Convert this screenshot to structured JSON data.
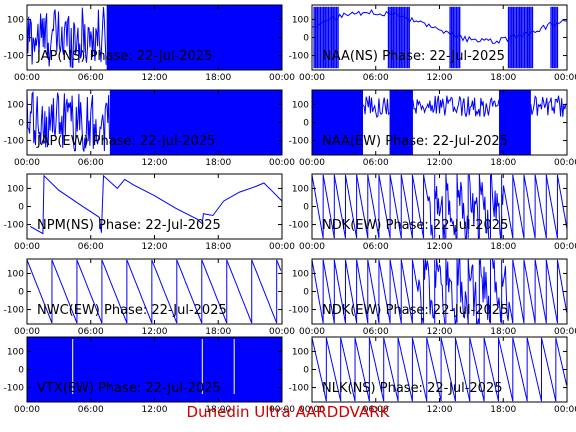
{
  "footer": {
    "text": "Dunedin Ultra AARDDVARK"
  },
  "colors": {
    "trace": "#0000ff",
    "axis": "#000000",
    "footer": "#cc0000"
  },
  "chart_data": [
    {
      "type": "line",
      "title": "JAP(NS) Phase: 22-Jul-2025",
      "xticks": [
        "00:00",
        "06:00",
        "12:00",
        "18:00",
        "00:00"
      ],
      "yticks": [
        100,
        0,
        -100
      ],
      "xlim": [
        0,
        24
      ],
      "ylim": [
        -180,
        180
      ],
      "pattern": "noise_then_saturated",
      "segments": [
        [
          0,
          7.5
        ]
      ],
      "saturated_after": 7.5
    },
    {
      "type": "line",
      "title": "NAA(NS) Phase: 22-Jul-2025",
      "xticks": [
        "00:00",
        "06:00",
        "12:00",
        "18:00",
        "00:00"
      ],
      "yticks": [
        100,
        0,
        -100
      ],
      "xlim": [
        0,
        24
      ],
      "ylim": [
        -180,
        180
      ],
      "pattern": "ramp_with_bursts",
      "segments": [
        [
          0,
          24
        ]
      ],
      "bursts": [
        [
          0.2,
          2.5
        ],
        [
          7.2,
          9.2
        ],
        [
          13.0,
          14.0
        ],
        [
          18.5,
          20.8
        ],
        [
          22.5,
          23.2
        ]
      ]
    },
    {
      "type": "line",
      "title": "JAP(EW) Phase: 22-Jul-2025",
      "xticks": [
        "00:00",
        "06:00",
        "12:00",
        "18:00",
        "00:00"
      ],
      "yticks": [
        100,
        0,
        -100
      ],
      "xlim": [
        0,
        24
      ],
      "ylim": [
        -180,
        180
      ],
      "pattern": "noise_then_saturated",
      "segments": [
        [
          0,
          7.8
        ]
      ],
      "saturated_after": 7.8
    },
    {
      "type": "line",
      "title": "NAA(EW) Phase: 22-Jul-2025",
      "xticks": [
        "00:00",
        "06:00",
        "12:00",
        "18:00",
        "00:00"
      ],
      "yticks": [
        100,
        0,
        -100
      ],
      "xlim": [
        0,
        24
      ],
      "ylim": [
        -180,
        180
      ],
      "pattern": "saturated_with_gap",
      "saturated_ranges": [
        [
          0,
          4.8
        ],
        [
          7.3,
          9.5
        ],
        [
          17.6,
          20.6
        ]
      ],
      "segments": [
        [
          4.8,
          7.3
        ],
        [
          9.5,
          17.6
        ],
        [
          20.6,
          24
        ]
      ]
    },
    {
      "type": "line",
      "title": "NPM(NS) Phase: 22-Jul-2025",
      "xticks": [
        "00:00",
        "06:00",
        "12:00",
        "18:00",
        "00:00"
      ],
      "yticks": [
        100,
        0,
        -100
      ],
      "xlim": [
        0,
        24
      ],
      "ylim": [
        -180,
        180
      ],
      "pattern": "npm_curve",
      "points": [
        [
          0.3,
          -110
        ],
        [
          1.5,
          -150
        ],
        [
          1.6,
          170
        ],
        [
          3,
          90
        ],
        [
          5,
          10
        ],
        [
          6.8,
          -60
        ],
        [
          7.0,
          -145
        ],
        [
          7.2,
          170
        ],
        [
          8.5,
          100
        ],
        [
          9.2,
          150
        ],
        [
          10,
          120
        ],
        [
          12,
          60
        ],
        [
          14,
          -10
        ],
        [
          16,
          -70
        ],
        [
          16.5,
          -95
        ],
        [
          16.6,
          -40
        ],
        [
          17.5,
          -50
        ],
        [
          18.5,
          30
        ],
        [
          20,
          80
        ],
        [
          21.5,
          110
        ],
        [
          22.3,
          130
        ],
        [
          23,
          90
        ],
        [
          24,
          30
        ]
      ]
    },
    {
      "type": "line",
      "title": "NDK(EW) Phase: 22-Jul-2025",
      "xticks": [
        "00:00",
        "06:00",
        "12:00",
        "18:00",
        "00:00"
      ],
      "yticks": [
        100,
        0,
        -100
      ],
      "xlim": [
        0,
        24
      ],
      "ylim": [
        -180,
        180
      ],
      "pattern": "sawtooth_noisy",
      "period": 1.05,
      "noise_ranges": [
        [
          11,
          18
        ]
      ]
    },
    {
      "type": "line",
      "title": "NWC(EW) Phase: 22-Jul-2025",
      "xticks": [
        "00:00",
        "06:00",
        "12:00",
        "18:00",
        "00:00"
      ],
      "yticks": [
        100,
        0,
        -100
      ],
      "xlim": [
        0,
        24
      ],
      "ylim": [
        -180,
        180
      ],
      "pattern": "sawtooth",
      "period": 2.35,
      "end_curve": true
    },
    {
      "type": "line",
      "title": "NDK(EW) Phase: 22-Jul-2025",
      "xticks": [
        "00:00",
        "06:00",
        "12:00",
        "18:00",
        "00:00"
      ],
      "yticks": [
        100,
        0,
        -100
      ],
      "xlim": [
        0,
        24
      ],
      "ylim": [
        -180,
        180
      ],
      "pattern": "sawtooth_noisy",
      "period": 1.05,
      "noise_ranges": [
        [
          10,
          18.5
        ]
      ]
    },
    {
      "type": "line",
      "title": "VTX(EW) Phase: 22-Jul-2025",
      "xticks": [
        "00:00",
        "06:00",
        "12:00",
        "18:00",
        "00:00"
      ],
      "yticks": [
        100,
        0,
        -100
      ],
      "xlim": [
        0,
        24
      ],
      "ylim": [
        -180,
        180
      ],
      "pattern": "fully_saturated",
      "gaps": [
        4.3,
        16.5,
        19.5
      ]
    },
    {
      "type": "line",
      "title": "NLK(NS) Phase: 22-Jul-2025",
      "xticks": [
        "00:00",
        "06:00",
        "12:00",
        "18:00",
        "00:00"
      ],
      "yticks": [
        100,
        0,
        -100
      ],
      "xlim": [
        0,
        24
      ],
      "ylim": [
        -180,
        180
      ],
      "pattern": "sawtooth",
      "period": 1.35
    }
  ]
}
